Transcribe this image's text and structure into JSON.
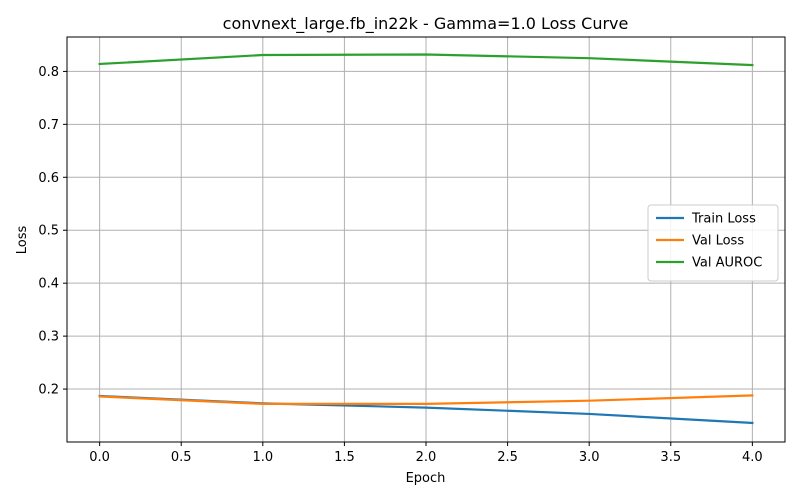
{
  "chart_data": {
    "type": "line",
    "title": "convnext_large.fb_in22k - Gamma=1.0 Loss Curve",
    "xlabel": "Epoch",
    "ylabel": "Loss",
    "xlim": [
      -0.2,
      4.2
    ],
    "ylim": [
      0.1,
      0.865
    ],
    "xticks": [
      "0.0",
      "0.5",
      "1.0",
      "1.5",
      "2.0",
      "2.5",
      "3.0",
      "3.5",
      "4.0"
    ],
    "yticks": [
      "0.2",
      "0.3",
      "0.4",
      "0.5",
      "0.6",
      "0.7",
      "0.8"
    ],
    "grid": true,
    "legend_position": "center-right",
    "x": [
      0,
      1,
      2,
      3,
      4
    ],
    "series": [
      {
        "name": "Train Loss",
        "color": "#1f77b4",
        "values": [
          0.187,
          0.173,
          0.165,
          0.153,
          0.136
        ]
      },
      {
        "name": "Val Loss",
        "color": "#ff7f0e",
        "values": [
          0.186,
          0.172,
          0.172,
          0.178,
          0.188
        ]
      },
      {
        "name": "Val AUROC",
        "color": "#2ca02c",
        "values": [
          0.814,
          0.831,
          0.832,
          0.825,
          0.812
        ]
      }
    ]
  }
}
